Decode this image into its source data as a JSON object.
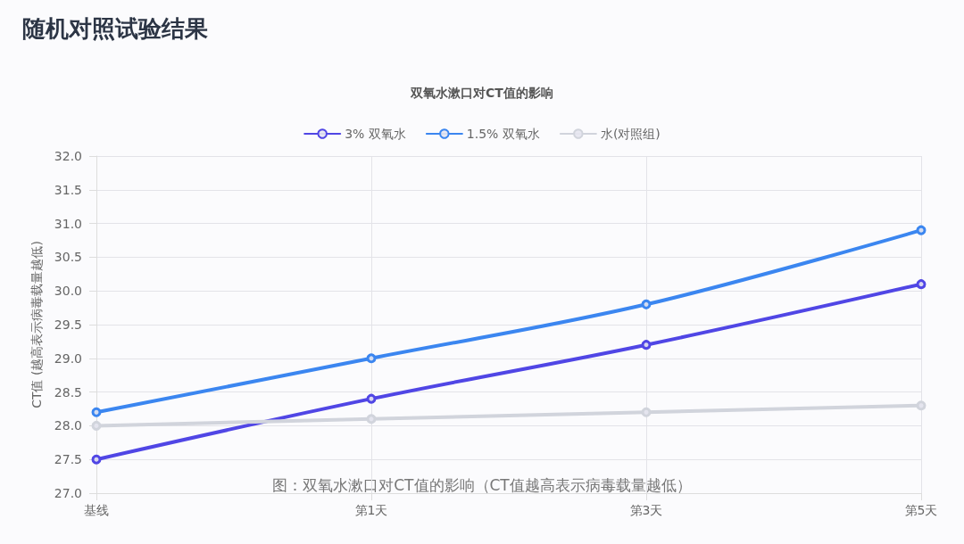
{
  "chart_data": {
    "type": "line",
    "title": "随机对照试验结果",
    "subtitle": "双氧水漱口对CT值的影响",
    "ylabel": "CT值 (越高表示病毒载量越低)",
    "categories": [
      "基线",
      "第1天",
      "第3天",
      "第5天"
    ],
    "series": [
      {
        "name": "3% 双氧水",
        "color": "#5046e5",
        "values": [
          27.5,
          28.4,
          29.2,
          30.1
        ]
      },
      {
        "name": "1.5% 双氧水",
        "color": "#3b86f0",
        "values": [
          28.2,
          29.0,
          29.8,
          30.9
        ]
      },
      {
        "name": "水(对照组)",
        "color": "#d1d4dc",
        "values": [
          28.0,
          28.1,
          28.2,
          28.3
        ]
      }
    ],
    "ylim": [
      27,
      32
    ],
    "yticks": [
      {
        "value": 27,
        "label": "27.0"
      },
      {
        "value": 27.5,
        "label": "27.5"
      },
      {
        "value": 28,
        "label": "28.0"
      },
      {
        "value": 28.5,
        "label": "28.5"
      },
      {
        "value": 29,
        "label": "29.0"
      },
      {
        "value": 29.5,
        "label": "29.5"
      },
      {
        "value": 30,
        "label": "30.0"
      },
      {
        "value": 30.5,
        "label": "30.5"
      },
      {
        "value": 31,
        "label": "31.0"
      },
      {
        "value": 31.5,
        "label": "31.5"
      },
      {
        "value": 32,
        "label": "32.0"
      }
    ],
    "annotations": [
      "图：双氧水漱口对CT值的影响（CT值越高表示病毒载量越低）"
    ],
    "grid": true,
    "legend": "top",
    "marker": "circle",
    "line_style": "solid"
  }
}
